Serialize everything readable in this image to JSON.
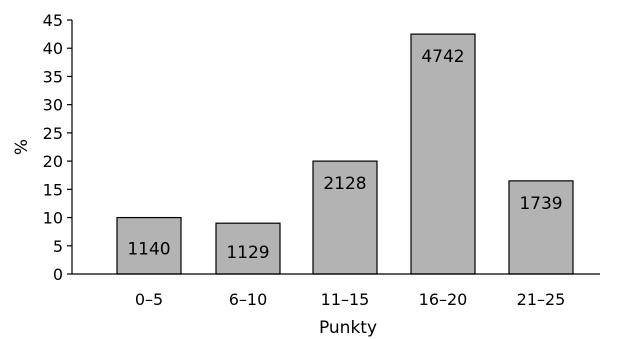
{
  "chart_data": {
    "type": "bar",
    "categories": [
      "0–5",
      "6–10",
      "11–15",
      "16–20",
      "21–25"
    ],
    "values": [
      10,
      9,
      20,
      42.5,
      16.5
    ],
    "data_labels": [
      "1140",
      "1129",
      "2128",
      "4742",
      "1739"
    ],
    "xlabel": "Punkty",
    "ylabel": "%",
    "ylim": [
      0,
      45
    ],
    "yticks": [
      0,
      5,
      10,
      15,
      20,
      25,
      30,
      35,
      40,
      45
    ],
    "grid": false,
    "bar_color": "#b3b3b3",
    "bar_edge_color": "#000000"
  }
}
